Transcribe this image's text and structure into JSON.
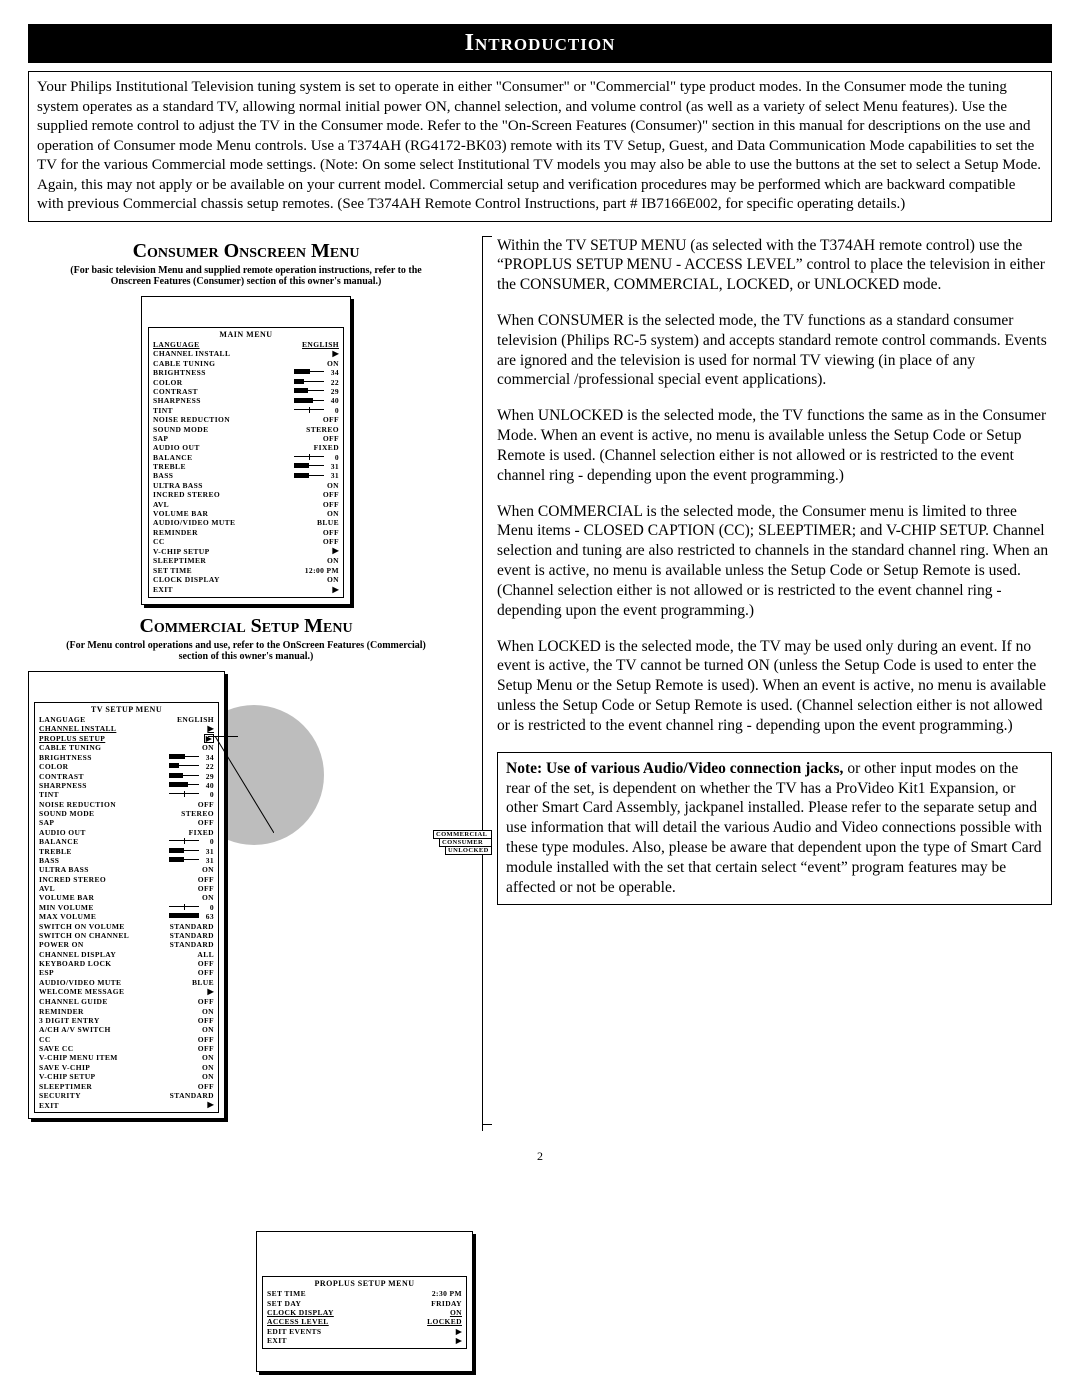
{
  "title": "Introduction",
  "intro_text": "Your Philips Institutional Television tuning system is set to operate in either \"Consumer\" or \"Commercial\" type product modes. In the Consumer mode the tuning system operates as a standard TV, allowing normal initial power ON, channel selection, and volume control (as well as a variety of select Menu features). Use the supplied remote control to adjust the TV in the Consumer mode. Refer to the \"On-Screen Features (Consumer)\" section in this manual for descriptions on the use and operation of Consumer mode Menu controls. Use a T374AH (RG4172-BK03) remote with its TV Setup, Guest, and Data Communication Mode capabilities to set the TV for the various Commercial mode settings. (Note: On some select Institutional TV models you may also be able to use the buttons at the set to select a Setup Mode. Again, this may not apply or be available on your current model. Commercial setup and verification procedures may be performed which are backward compatible with previous Commercial chassis setup remotes. (See T374AH Remote Control Instructions, part # IB7166E002, for specific operating details.)",
  "consumer_heading": "Consumer Onscreen Menu",
  "consumer_sub": "(For basic television Menu and supplied remote operation instructions, refer to the Onscreen Features (Consumer) section of this owner's manual.)",
  "commercial_heading": "Commercial  Setup Menu",
  "commercial_sub": "(For Menu control operations and use, refer to the OnScreen Features (Commercial) section of this owner's manual.)",
  "main_menu": {
    "title": "MAIN MENU",
    "rows": [
      {
        "label": "LANGUAGE",
        "type": "val",
        "val": "ENGLISH",
        "underline": true
      },
      {
        "label": "CHANNEL INSTALL",
        "type": "arrow"
      },
      {
        "label": "CABLE TUNING",
        "type": "val",
        "val": "ON"
      },
      {
        "label": "BRIGHTNESS",
        "type": "slider",
        "val": 34,
        "max": 63
      },
      {
        "label": "COLOR",
        "type": "slider",
        "val": 22,
        "max": 63
      },
      {
        "label": "CONTRAST",
        "type": "slider",
        "val": 29,
        "max": 63
      },
      {
        "label": "SHARPNESS",
        "type": "slider",
        "val": 40,
        "max": 63
      },
      {
        "label": "TINT",
        "type": "center",
        "val": 0
      },
      {
        "label": "NOISE REDUCTION",
        "type": "val",
        "val": "OFF"
      },
      {
        "label": "SOUND MODE",
        "type": "val",
        "val": "STEREO"
      },
      {
        "label": "SAP",
        "type": "val",
        "val": "OFF"
      },
      {
        "label": "AUDIO OUT",
        "type": "val",
        "val": "FIXED"
      },
      {
        "label": "BALANCE",
        "type": "center",
        "val": 0
      },
      {
        "label": "TREBLE",
        "type": "slider",
        "val": 31,
        "max": 63
      },
      {
        "label": "BASS",
        "type": "slider",
        "val": 31,
        "max": 63
      },
      {
        "label": "ULTRA BASS",
        "type": "val",
        "val": "ON"
      },
      {
        "label": "INCRED STEREO",
        "type": "val",
        "val": "OFF"
      },
      {
        "label": "AVL",
        "type": "val",
        "val": "OFF"
      },
      {
        "label": "VOLUME BAR",
        "type": "val",
        "val": "ON"
      },
      {
        "label": "AUDIO/VIDEO MUTE",
        "type": "val",
        "val": "BLUE"
      },
      {
        "label": "REMINDER",
        "type": "val",
        "val": "OFF"
      },
      {
        "label": "CC",
        "type": "val",
        "val": "OFF"
      },
      {
        "label": "V-CHIP SETUP",
        "type": "arrow"
      },
      {
        "label": "SLEEPTIMER",
        "type": "val",
        "val": "ON"
      },
      {
        "label": "SET TIME",
        "type": "val",
        "val": "12:00 PM"
      },
      {
        "label": "CLOCK DISPLAY",
        "type": "val",
        "val": "ON"
      },
      {
        "label": "EXIT",
        "type": "arrow"
      }
    ]
  },
  "tv_setup_menu": {
    "title": "TV SETUP MENU",
    "rows": [
      {
        "label": "LANGUAGE",
        "type": "val",
        "val": "ENGLISH"
      },
      {
        "label": "CHANNEL INSTALL",
        "type": "arrow",
        "underline": true
      },
      {
        "label": "PROPLUS SETUP",
        "type": "arrowbox",
        "underline": true
      },
      {
        "label": "CABLE TUNING",
        "type": "val",
        "val": "ON"
      },
      {
        "label": "BRIGHTNESS",
        "type": "slider",
        "val": 34,
        "max": 63
      },
      {
        "label": "COLOR",
        "type": "slider",
        "val": 22,
        "max": 63
      },
      {
        "label": "CONTRAST",
        "type": "slider",
        "val": 29,
        "max": 63
      },
      {
        "label": "SHARPNESS",
        "type": "slider",
        "val": 40,
        "max": 63
      },
      {
        "label": "TINT",
        "type": "center",
        "val": 0
      },
      {
        "label": "NOISE REDUCTION",
        "type": "val",
        "val": "OFF"
      },
      {
        "label": "SOUND MODE",
        "type": "val",
        "val": "STEREO"
      },
      {
        "label": "SAP",
        "type": "val",
        "val": "OFF"
      },
      {
        "label": "AUDIO OUT",
        "type": "val",
        "val": "FIXED"
      },
      {
        "label": "BALANCE",
        "type": "center",
        "val": 0
      },
      {
        "label": "TREBLE",
        "type": "slider",
        "val": 31,
        "max": 63
      },
      {
        "label": "BASS",
        "type": "slider",
        "val": 31,
        "max": 63
      },
      {
        "label": "ULTRA BASS",
        "type": "val",
        "val": "ON"
      },
      {
        "label": "INCRED STEREO",
        "type": "val",
        "val": "OFF"
      },
      {
        "label": "AVL",
        "type": "val",
        "val": "OFF"
      },
      {
        "label": "VOLUME BAR",
        "type": "val",
        "val": "ON"
      },
      {
        "label": "MIN VOLUME",
        "type": "center",
        "val": 0
      },
      {
        "label": "MAX VOLUME",
        "type": "slider",
        "val": 63,
        "max": 63
      },
      {
        "label": "SWITCH ON VOLUME",
        "type": "val",
        "val": "STANDARD"
      },
      {
        "label": "SWITCH ON CHANNEL",
        "type": "val",
        "val": "STANDARD"
      },
      {
        "label": "POWER ON",
        "type": "val",
        "val": "STANDARD"
      },
      {
        "label": "CHANNEL DISPLAY",
        "type": "val",
        "val": "ALL"
      },
      {
        "label": "KEYBOARD LOCK",
        "type": "val",
        "val": "OFF"
      },
      {
        "label": "ESP",
        "type": "val",
        "val": "OFF"
      },
      {
        "label": "AUDIO/VIDEO MUTE",
        "type": "val",
        "val": "BLUE"
      },
      {
        "label": "WELCOME MESSAGE",
        "type": "arrow"
      },
      {
        "label": "CHANNEL GUIDE",
        "type": "val",
        "val": "OFF"
      },
      {
        "label": "REMINDER",
        "type": "val",
        "val": "ON"
      },
      {
        "label": "3 DIGIT ENTRY",
        "type": "val",
        "val": "OFF"
      },
      {
        "label": "A/CH A/V SWITCH",
        "type": "val",
        "val": "ON"
      },
      {
        "label": "CC",
        "type": "val",
        "val": "OFF"
      },
      {
        "label": "SAVE CC",
        "type": "val",
        "val": "OFF"
      },
      {
        "label": "V-CHIP MENU ITEM",
        "type": "val",
        "val": "ON"
      },
      {
        "label": "SAVE V-CHIP",
        "type": "val",
        "val": "ON"
      },
      {
        "label": "V-CHIP SETUP",
        "type": "val",
        "val": "ON"
      },
      {
        "label": "SLEEPTIMER",
        "type": "val",
        "val": "OFF"
      },
      {
        "label": "SECURITY",
        "type": "val",
        "val": "STANDARD"
      },
      {
        "label": "EXIT",
        "type": "arrow"
      }
    ]
  },
  "proplus_menu": {
    "title": "PROPLUS SETUP MENU",
    "rows": [
      {
        "label": "SET TIME",
        "val": "2:30 PM"
      },
      {
        "label": "SET DAY",
        "val": "FRIDAY"
      },
      {
        "label": "CLOCK DISPLAY",
        "val": "ON",
        "underline": true
      },
      {
        "label": "ACCESS LEVEL",
        "val": "LOCKED",
        "underline": true
      },
      {
        "label": "EDIT EVENTS",
        "val": "▶"
      },
      {
        "label": "EXIT",
        "val": "▶"
      }
    ]
  },
  "flyout_items": [
    "COMMERCIAL",
    "CONSUMER",
    "UNLOCKED"
  ],
  "paragraphs": [
    "Within the TV SETUP MENU (as selected with the T374AH remote control) use the “PROPLUS SETUP MENU - ACCESS LEVEL” control to place the television in either the CONSUMER, COMMERCIAL, LOCKED, or UNLOCKED mode.",
    "When CONSUMER is the selected mode, the TV functions as a standard consumer television (Philips RC-5 system) and accepts standard remote control commands.  Events are ignored and the television is used for normal TV viewing (in place of any commercial /professional special event applications).",
    "When UNLOCKED is the selected mode, the TV functions the same as in the Consumer Mode. When an event is active, no menu is available unless the Setup Code or Setup Remote is used. (Channel selection either is not allowed or is restricted to the event channel ring - depending upon the event programming.)",
    "When COMMERCIAL is the selected mode, the Consumer menu is limited to three Menu items - CLOSED CAPTION (CC);  SLEEPTIMER; and V-CHIP SETUP. Channel selection and tuning are also restricted to channels in the standard channel ring.  When an event is active, no menu is available unless the Setup Code or Setup Remote is used. (Channel selection either is not allowed or is restricted to the event channel ring - depending upon the event programming.)",
    "When LOCKED is the selected mode, the TV may be used only during an event. If no event is active, the TV cannot be turned ON (unless the Setup Code is used to enter the Setup Menu or the Setup Remote is used). When an event is active, no menu is available unless the Setup Code or Setup Remote is used. (Channel selection either is not allowed or is restricted to the event channel ring - depending upon the event programming.)"
  ],
  "note_bold": "Note: Use of various Audio/Video connection jacks,",
  "note_rest": " or other input modes on the rear of the set, is dependent on whether the TV has a ProVideo Kit1 Expansion, or other Smart Card Assembly, jackpanel installed. Please refer to the separate setup and use information that will detail the various Audio and Video connections possible with these type modules. Also, please be aware that dependent upon the type of Smart Card module installed with the set that certain select “event” program features may be affected or not be operable.",
  "page_number": "2"
}
